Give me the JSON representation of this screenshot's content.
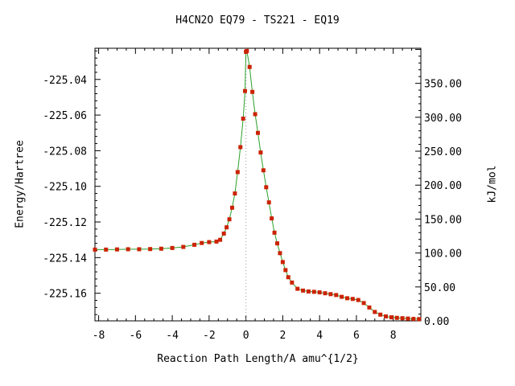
{
  "chart_data": {
    "type": "line",
    "title": "H4CN2O   EQ79 - TS221 - EQ19",
    "xlabel": "Reaction Path Length/A amu^{1/2}",
    "ylabel": "Energy/Hartree",
    "y2label": "kJ/mol",
    "xlim": [
      -8.2,
      9.5
    ],
    "ylim": [
      -225.1755,
      -225.0225
    ],
    "y2lim": [
      0,
      401.7
    ],
    "x_ticks": [
      -8,
      -6,
      -4,
      -2,
      0,
      2,
      4,
      6,
      8
    ],
    "x_tick_labels": [
      "-8",
      "-6",
      "-4",
      "-2",
      "0",
      "2",
      "4",
      "6",
      "8"
    ],
    "y_ticks": [
      -225.16,
      -225.14,
      -225.12,
      -225.1,
      -225.08,
      -225.06,
      -225.04
    ],
    "y_tick_labels": [
      "-225.16",
      "-225.14",
      "-225.12",
      "-225.10",
      "-225.08",
      "-225.06",
      "-225.04"
    ],
    "y2_ticks": [
      0,
      50,
      100,
      150,
      200,
      250,
      300,
      350
    ],
    "y2_tick_labels": [
      "0.00",
      "50.00",
      "100.00",
      "150.00",
      "200.00",
      "250.00",
      "300.00",
      "350.00"
    ],
    "grid": false,
    "legend": "none",
    "ts_marker_x": 0,
    "series": [
      {
        "line_color": "#2aa02a",
        "marker_color": "#cc2200",
        "x": [
          -8.2,
          -7.6,
          -7.0,
          -6.4,
          -5.8,
          -5.2,
          -4.6,
          -4.0,
          -3.4,
          -2.8,
          -2.4,
          -2.0,
          -1.6,
          -1.4,
          -1.2,
          -1.05,
          -0.9,
          -0.75,
          -0.6,
          -0.45,
          -0.3,
          -0.15,
          -0.05,
          0.0,
          0.05,
          0.2,
          0.35,
          0.5,
          0.65,
          0.8,
          0.95,
          1.1,
          1.25,
          1.4,
          1.55,
          1.7,
          1.85,
          2.0,
          2.15,
          2.3,
          2.5,
          2.8,
          3.1,
          3.4,
          3.7,
          4.0,
          4.3,
          4.6,
          4.9,
          5.2,
          5.5,
          5.8,
          6.1,
          6.4,
          6.7,
          7.0,
          7.3,
          7.6,
          7.9,
          8.2,
          8.5,
          8.8,
          9.1,
          9.4
        ],
        "y": [
          -225.1355,
          -225.1355,
          -225.1354,
          -225.1353,
          -225.1353,
          -225.1352,
          -225.135,
          -225.1346,
          -225.134,
          -225.1328,
          -225.1318,
          -225.1313,
          -225.131,
          -225.13,
          -225.1265,
          -225.123,
          -225.1185,
          -225.112,
          -225.104,
          -225.092,
          -225.078,
          -225.062,
          -225.0465,
          -225.0245,
          -225.024,
          -225.033,
          -225.047,
          -225.0595,
          -225.07,
          -225.081,
          -225.091,
          -225.1005,
          -225.109,
          -225.118,
          -225.126,
          -225.132,
          -225.1375,
          -225.1425,
          -225.147,
          -225.151,
          -225.154,
          -225.1575,
          -225.1585,
          -225.159,
          -225.1592,
          -225.1595,
          -225.16,
          -225.1605,
          -225.161,
          -225.162,
          -225.1628,
          -225.1632,
          -225.1638,
          -225.1655,
          -225.168,
          -225.1705,
          -225.172,
          -225.173,
          -225.1735,
          -225.1738,
          -225.174,
          -225.1742,
          -225.1744,
          -225.1745
        ]
      }
    ]
  }
}
